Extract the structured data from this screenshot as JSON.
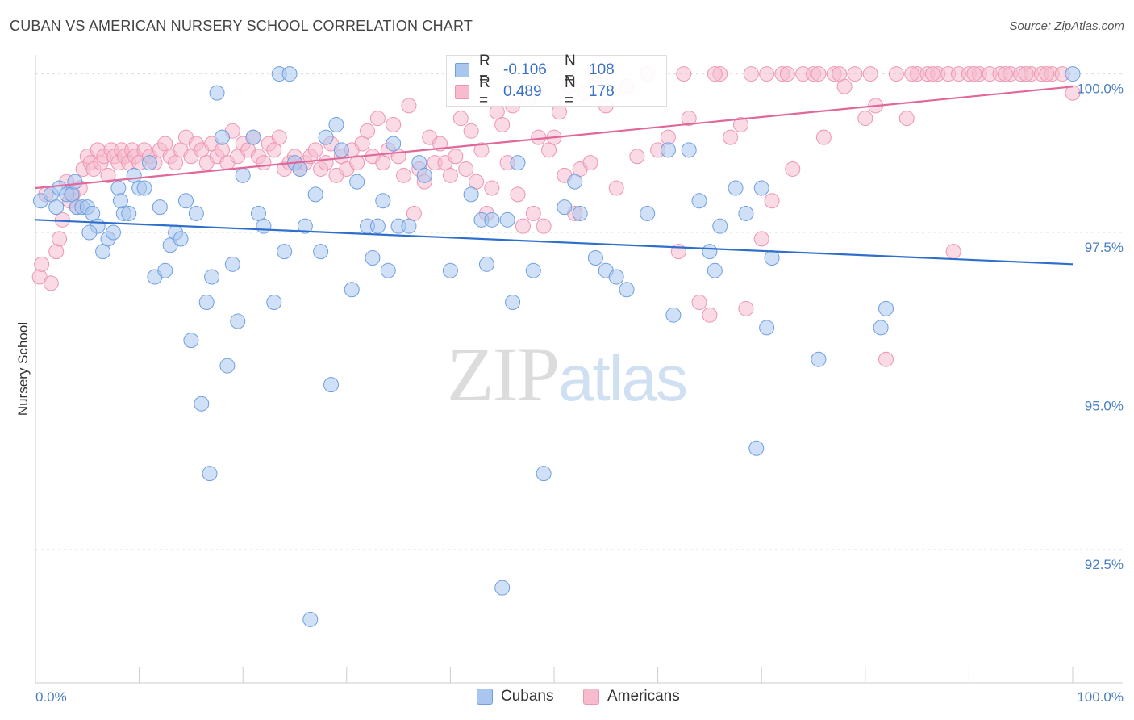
{
  "header": {
    "title": "CUBAN VS AMERICAN NURSERY SCHOOL CORRELATION CHART",
    "source": "Source: ZipAtlas.com"
  },
  "watermark": {
    "zip": "ZIP",
    "atlas": "atlas"
  },
  "legend": {
    "rows": [
      {
        "r_label": "R =",
        "r_value": "-0.106",
        "n_label": "N =",
        "n_value": "108"
      },
      {
        "r_label": "R =",
        "r_value": "0.489",
        "n_label": "N =",
        "n_value": "178"
      }
    ]
  },
  "bottom_legend": {
    "cubans": "Cubans",
    "americans": "Americans"
  },
  "colors": {
    "cubans_fill": "#a9c6ee",
    "cubans_stroke": "#6f9fe0",
    "cubans_line": "#2f6fcc",
    "americans_fill": "#f6bccd",
    "americans_stroke": "#ee95b0",
    "americans_line": "#e0679a",
    "tick_text": "#4a7fc4",
    "grid": "#dddddd"
  },
  "chart_data": {
    "type": "scatter",
    "title": "CUBAN VS AMERICAN NURSERY SCHOOL CORRELATION CHART",
    "xlabel": "",
    "ylabel": "Nursery School",
    "xlim": [
      0,
      100
    ],
    "ylim": [
      90.4,
      100.3
    ],
    "x_tick_labels": [
      "0.0%",
      "100.0%"
    ],
    "y_ticks": [
      100.0,
      97.5,
      95.0,
      92.5
    ],
    "y_tick_labels": [
      "100.0%",
      "97.5%",
      "95.0%",
      "92.5%"
    ],
    "grid": true,
    "series": [
      {
        "name": "Cubans",
        "r": -0.106,
        "n": 108,
        "trend": {
          "x": [
            0,
            100
          ],
          "y": [
            97.7,
            97.0
          ]
        },
        "points": [
          [
            0.5,
            98.0
          ],
          [
            1.5,
            98.1
          ],
          [
            2.0,
            97.9
          ],
          [
            2.3,
            98.2
          ],
          [
            3.0,
            98.1
          ],
          [
            3.5,
            98.1
          ],
          [
            4.0,
            97.9
          ],
          [
            4.5,
            97.9
          ],
          [
            5.0,
            97.9
          ],
          [
            5.5,
            97.8
          ],
          [
            6.0,
            97.6
          ],
          [
            6.5,
            97.2
          ],
          [
            7.0,
            97.4
          ],
          [
            7.5,
            97.5
          ],
          [
            8.0,
            98.2
          ],
          [
            8.5,
            97.8
          ],
          [
            9.0,
            97.8
          ],
          [
            9.5,
            98.4
          ],
          [
            10.0,
            98.2
          ],
          [
            10.5,
            98.2
          ],
          [
            11.0,
            98.6
          ],
          [
            11.5,
            96.8
          ],
          [
            12.0,
            97.9
          ],
          [
            12.5,
            96.9
          ],
          [
            13.0,
            97.3
          ],
          [
            13.5,
            97.5
          ],
          [
            14.0,
            97.4
          ],
          [
            14.5,
            98.0
          ],
          [
            15.0,
            95.8
          ],
          [
            15.5,
            97.8
          ],
          [
            16.0,
            94.8
          ],
          [
            16.5,
            96.4
          ],
          [
            16.8,
            93.7
          ],
          [
            17.0,
            96.8
          ],
          [
            17.5,
            99.7
          ],
          [
            18.0,
            99.0
          ],
          [
            18.5,
            95.4
          ],
          [
            19.0,
            97.0
          ],
          [
            19.5,
            96.1
          ],
          [
            20.0,
            98.4
          ],
          [
            21.0,
            99.0
          ],
          [
            21.5,
            97.8
          ],
          [
            22.0,
            97.6
          ],
          [
            23.0,
            96.4
          ],
          [
            23.5,
            100.0
          ],
          [
            24.0,
            97.2
          ],
          [
            24.5,
            100.0
          ],
          [
            25.0,
            98.6
          ],
          [
            25.5,
            98.5
          ],
          [
            26.0,
            97.6
          ],
          [
            26.5,
            91.4
          ],
          [
            27.0,
            98.1
          ],
          [
            27.5,
            97.2
          ],
          [
            28.0,
            99.0
          ],
          [
            28.5,
            95.1
          ],
          [
            29.0,
            99.2
          ],
          [
            29.5,
            98.8
          ],
          [
            30.5,
            96.6
          ],
          [
            31.0,
            98.3
          ],
          [
            32.0,
            97.6
          ],
          [
            32.5,
            97.1
          ],
          [
            33.0,
            97.6
          ],
          [
            33.5,
            98.0
          ],
          [
            34.0,
            96.9
          ],
          [
            34.5,
            98.9
          ],
          [
            35.0,
            97.6
          ],
          [
            36.0,
            97.6
          ],
          [
            37.0,
            98.6
          ],
          [
            37.5,
            98.4
          ],
          [
            40.0,
            96.9
          ],
          [
            42.0,
            98.1
          ],
          [
            43.0,
            97.7
          ],
          [
            43.5,
            97.0
          ],
          [
            44.0,
            97.7
          ],
          [
            45.0,
            91.9
          ],
          [
            45.5,
            97.7
          ],
          [
            46.0,
            96.4
          ],
          [
            46.5,
            98.6
          ],
          [
            48.0,
            96.9
          ],
          [
            49.0,
            93.7
          ],
          [
            51.0,
            97.9
          ],
          [
            52.0,
            98.3
          ],
          [
            52.5,
            97.8
          ],
          [
            54.0,
            97.1
          ],
          [
            55.0,
            96.9
          ],
          [
            56.0,
            96.8
          ],
          [
            57.0,
            96.6
          ],
          [
            59.0,
            97.8
          ],
          [
            61.0,
            98.8
          ],
          [
            61.5,
            96.2
          ],
          [
            63.0,
            98.8
          ],
          [
            64.0,
            98.0
          ],
          [
            65.0,
            97.2
          ],
          [
            65.5,
            96.9
          ],
          [
            66.0,
            97.6
          ],
          [
            67.5,
            98.2
          ],
          [
            68.5,
            97.8
          ],
          [
            69.5,
            94.1
          ],
          [
            70.0,
            98.2
          ],
          [
            70.5,
            96.0
          ],
          [
            71.0,
            97.1
          ],
          [
            75.5,
            95.5
          ],
          [
            81.5,
            96.0
          ],
          [
            82.0,
            96.3
          ],
          [
            100.0,
            100.0
          ],
          [
            8.2,
            98.0
          ],
          [
            3.8,
            98.3
          ],
          [
            5.2,
            97.5
          ]
        ]
      },
      {
        "name": "Americans",
        "r": 0.489,
        "n": 178,
        "trend": {
          "x": [
            0,
            100
          ],
          "y": [
            98.2,
            99.8
          ]
        },
        "points": [
          [
            0.4,
            96.8
          ],
          [
            0.6,
            97.0
          ],
          [
            1.0,
            98.1
          ],
          [
            1.5,
            96.7
          ],
          [
            2.0,
            97.2
          ],
          [
            2.3,
            97.4
          ],
          [
            2.6,
            97.7
          ],
          [
            3.0,
            98.3
          ],
          [
            3.3,
            98.0
          ],
          [
            3.6,
            98.1
          ],
          [
            4.0,
            97.9
          ],
          [
            4.3,
            98.2
          ],
          [
            4.6,
            98.5
          ],
          [
            5.0,
            98.7
          ],
          [
            5.3,
            98.6
          ],
          [
            5.6,
            98.5
          ],
          [
            6.0,
            98.8
          ],
          [
            6.3,
            98.6
          ],
          [
            6.6,
            98.7
          ],
          [
            7.0,
            98.4
          ],
          [
            7.3,
            98.8
          ],
          [
            7.6,
            98.7
          ],
          [
            8.0,
            98.6
          ],
          [
            8.3,
            98.8
          ],
          [
            8.6,
            98.7
          ],
          [
            9.0,
            98.6
          ],
          [
            9.3,
            98.8
          ],
          [
            9.6,
            98.7
          ],
          [
            10.0,
            98.6
          ],
          [
            10.5,
            98.8
          ],
          [
            11.0,
            98.7
          ],
          [
            11.5,
            98.6
          ],
          [
            12.0,
            98.8
          ],
          [
            12.5,
            98.9
          ],
          [
            13.0,
            98.7
          ],
          [
            13.5,
            98.6
          ],
          [
            14.0,
            98.8
          ],
          [
            14.5,
            99.0
          ],
          [
            15.0,
            98.7
          ],
          [
            15.5,
            98.9
          ],
          [
            16.0,
            98.8
          ],
          [
            16.5,
            98.6
          ],
          [
            17.0,
            98.9
          ],
          [
            17.5,
            98.7
          ],
          [
            18.0,
            98.8
          ],
          [
            18.5,
            98.6
          ],
          [
            19.0,
            99.1
          ],
          [
            19.5,
            98.7
          ],
          [
            20.0,
            98.9
          ],
          [
            20.5,
            98.8
          ],
          [
            21.0,
            99.0
          ],
          [
            21.5,
            98.7
          ],
          [
            22.0,
            98.6
          ],
          [
            22.5,
            98.9
          ],
          [
            23.0,
            98.8
          ],
          [
            23.5,
            99.0
          ],
          [
            24.0,
            98.5
          ],
          [
            24.5,
            98.6
          ],
          [
            25.0,
            98.7
          ],
          [
            25.5,
            98.5
          ],
          [
            26.0,
            98.6
          ],
          [
            26.5,
            98.7
          ],
          [
            27.0,
            98.8
          ],
          [
            27.5,
            98.5
          ],
          [
            28.0,
            98.6
          ],
          [
            28.5,
            98.9
          ],
          [
            29.0,
            98.4
          ],
          [
            29.5,
            98.7
          ],
          [
            30.0,
            98.5
          ],
          [
            30.5,
            98.8
          ],
          [
            31.0,
            98.6
          ],
          [
            31.5,
            98.9
          ],
          [
            32.0,
            99.1
          ],
          [
            32.5,
            98.7
          ],
          [
            33.0,
            99.3
          ],
          [
            33.5,
            98.6
          ],
          [
            34.0,
            98.8
          ],
          [
            34.5,
            99.2
          ],
          [
            35.0,
            98.7
          ],
          [
            35.5,
            98.4
          ],
          [
            36.0,
            99.5
          ],
          [
            36.5,
            97.8
          ],
          [
            37.0,
            98.5
          ],
          [
            37.5,
            98.3
          ],
          [
            38.0,
            99.0
          ],
          [
            38.5,
            98.6
          ],
          [
            39.0,
            98.9
          ],
          [
            39.5,
            98.6
          ],
          [
            40.0,
            98.4
          ],
          [
            40.5,
            98.7
          ],
          [
            41.0,
            99.3
          ],
          [
            41.5,
            98.5
          ],
          [
            42.0,
            99.1
          ],
          [
            42.5,
            98.3
          ],
          [
            43.0,
            98.8
          ],
          [
            43.5,
            97.8
          ],
          [
            44.0,
            98.2
          ],
          [
            44.5,
            99.4
          ],
          [
            45.0,
            99.2
          ],
          [
            45.5,
            98.6
          ],
          [
            46.0,
            99.5
          ],
          [
            46.5,
            98.1
          ],
          [
            47.0,
            97.6
          ],
          [
            47.5,
            99.6
          ],
          [
            48.0,
            97.8
          ],
          [
            48.5,
            99.0
          ],
          [
            49.0,
            97.6
          ],
          [
            49.5,
            98.8
          ],
          [
            50.0,
            99.0
          ],
          [
            50.5,
            99.4
          ],
          [
            51.0,
            98.4
          ],
          [
            51.5,
            99.8
          ],
          [
            52.0,
            97.8
          ],
          [
            52.5,
            98.5
          ],
          [
            53.0,
            99.7
          ],
          [
            53.5,
            98.6
          ],
          [
            54.0,
            100.0
          ],
          [
            55.0,
            99.5
          ],
          [
            56.0,
            98.2
          ],
          [
            57.0,
            99.8
          ],
          [
            58.0,
            98.7
          ],
          [
            59.0,
            100.0
          ],
          [
            60.0,
            98.8
          ],
          [
            61.0,
            99.0
          ],
          [
            62.0,
            97.2
          ],
          [
            63.0,
            99.3
          ],
          [
            64.0,
            96.4
          ],
          [
            65.0,
            96.2
          ],
          [
            66.0,
            100.0
          ],
          [
            67.0,
            99.0
          ],
          [
            68.0,
            99.2
          ],
          [
            68.5,
            96.3
          ],
          [
            69.0,
            100.0
          ],
          [
            70.0,
            97.4
          ],
          [
            71.0,
            98.0
          ],
          [
            72.0,
            100.0
          ],
          [
            73.0,
            98.5
          ],
          [
            74.0,
            100.0
          ],
          [
            75.0,
            100.0
          ],
          [
            76.0,
            99.0
          ],
          [
            77.0,
            100.0
          ],
          [
            78.0,
            99.8
          ],
          [
            79.0,
            100.0
          ],
          [
            80.0,
            99.3
          ],
          [
            81.0,
            99.5
          ],
          [
            82.0,
            95.5
          ],
          [
            83.0,
            100.0
          ],
          [
            84.0,
            99.3
          ],
          [
            85.0,
            100.0
          ],
          [
            86.0,
            100.0
          ],
          [
            87.0,
            100.0
          ],
          [
            88.0,
            100.0
          ],
          [
            88.5,
            97.2
          ],
          [
            89.0,
            100.0
          ],
          [
            90.0,
            100.0
          ],
          [
            91.0,
            100.0
          ],
          [
            92.0,
            100.0
          ],
          [
            93.0,
            100.0
          ],
          [
            94.0,
            100.0
          ],
          [
            95.0,
            100.0
          ],
          [
            96.0,
            100.0
          ],
          [
            97.0,
            100.0
          ],
          [
            98.0,
            100.0
          ],
          [
            99.0,
            100.0
          ],
          [
            100.0,
            99.7
          ],
          [
            65.5,
            100.0
          ],
          [
            62.5,
            100.0
          ],
          [
            70.5,
            100.0
          ],
          [
            72.5,
            100.0
          ],
          [
            75.5,
            100.0
          ],
          [
            77.5,
            100.0
          ],
          [
            80.5,
            100.0
          ],
          [
            84.5,
            100.0
          ],
          [
            86.5,
            100.0
          ],
          [
            90.5,
            100.0
          ],
          [
            93.5,
            100.0
          ],
          [
            95.5,
            100.0
          ],
          [
            97.5,
            100.0
          ]
        ]
      }
    ]
  }
}
